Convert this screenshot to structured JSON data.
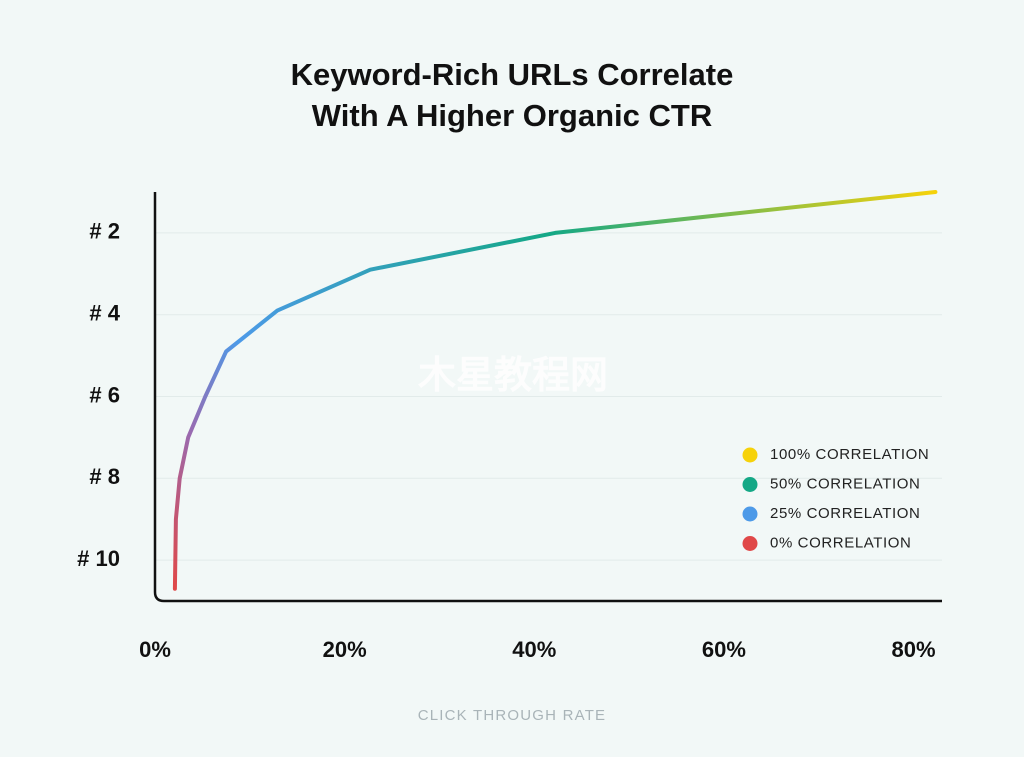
{
  "chart_data": {
    "type": "line",
    "title": [
      "Keyword-Rich URLs Correlate",
      "With A Higher Organic CTR"
    ],
    "x_label": "CLICK THROUGH RATE",
    "watermark": "木星教程网",
    "x": [
      82.3,
      42.2,
      22.7,
      12.9,
      7.5,
      5.3,
      3.5,
      2.6,
      2.2,
      2.1
    ],
    "series": [
      {
        "values": [
          1,
          2,
          2.9,
          3.9,
          4.9,
          6,
          7,
          8,
          9,
          10.7
        ]
      }
    ],
    "xlim": [
      0,
      83
    ],
    "xticks": [
      {
        "value": 0,
        "label": "0%"
      },
      {
        "value": 20,
        "label": "20%"
      },
      {
        "value": 40,
        "label": "40%"
      },
      {
        "value": 60,
        "label": "60%"
      },
      {
        "value": 80,
        "label": "80%"
      }
    ],
    "ylim": [
      11,
      1
    ],
    "yticks": [
      {
        "value": 2,
        "label": "# 2"
      },
      {
        "value": 4,
        "label": "# 4"
      },
      {
        "value": 6,
        "label": "# 6"
      },
      {
        "value": 8,
        "label": "# 8"
      },
      {
        "value": 10,
        "label": "# 10"
      }
    ],
    "grid": true,
    "legend": [
      {
        "name": "100% CORRELATION",
        "color": "#f6d20a"
      },
      {
        "name": "50% CORRELATION",
        "color": "#14a886"
      },
      {
        "name": "25% CORRELATION",
        "color": "#4d9ae8"
      },
      {
        "name": "0% CORRELATION",
        "color": "#e04848"
      }
    ]
  }
}
